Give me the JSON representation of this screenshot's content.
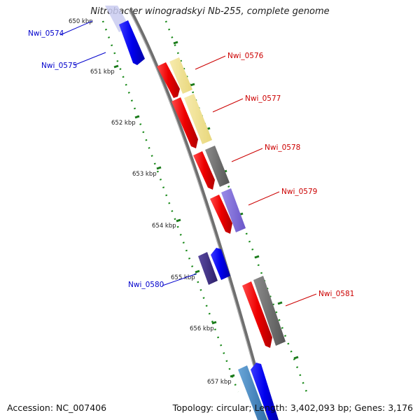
{
  "title": "Nitrobacter winogradskyi Nb-255, complete genome",
  "footer": {
    "accession": "Accession: NC_007406",
    "summary": "Topology: circular; Length: 3,402,093 bp; Genes: 3,176"
  },
  "scale": {
    "ticks": [
      "650 kbp",
      "651 kbp",
      "652 kbp",
      "653 kbp",
      "654 kbp",
      "655 kbp",
      "656 kbp",
      "657 kbp"
    ]
  },
  "genes": [
    {
      "label": "Nwi_0574",
      "strand": "-",
      "color": "#0000ee"
    },
    {
      "label": "Nwi_0575",
      "strand": "-",
      "color": "#0000ee"
    },
    {
      "label": "Nwi_0576",
      "strand": "+",
      "color": "#ee0000"
    },
    {
      "label": "Nwi_0577",
      "strand": "+",
      "color": "#ee0000"
    },
    {
      "label": "Nwi_0578",
      "strand": "+",
      "color": "#ee0000"
    },
    {
      "label": "Nwi_0579",
      "strand": "+",
      "color": "#ee0000"
    },
    {
      "label": "Nwi_0580",
      "strand": "-",
      "color": "#0000ee"
    },
    {
      "label": "Nwi_0581",
      "strand": "+",
      "color": "#ee0000"
    }
  ]
}
